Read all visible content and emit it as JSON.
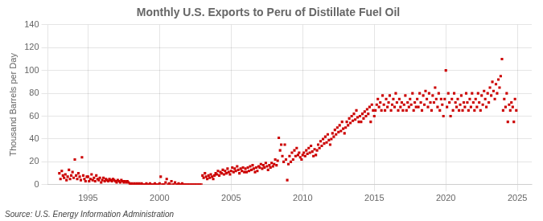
{
  "chart_data": {
    "type": "scatter",
    "title": "Monthly U.S. Exports to Peru of Distillate Fuel Oil",
    "y_label": "Thousand Barrels per Day",
    "source": "Source: U.S. Energy Information Administration",
    "color": "#CC0000",
    "marker": "square",
    "grid": true,
    "xlim": [
      1992.2,
      2026.0
    ],
    "ylim": [
      0,
      140
    ],
    "xticks": [
      1995,
      2000,
      2005,
      2010,
      2015,
      2020,
      2025
    ],
    "yticks": [
      0,
      20,
      40,
      60,
      80,
      100,
      120,
      140
    ],
    "x": [
      1993.0,
      1993.08,
      1993.17,
      1993.25,
      1993.33,
      1993.42,
      1993.5,
      1993.58,
      1993.67,
      1993.75,
      1993.83,
      1993.92,
      1994.0,
      1994.08,
      1994.17,
      1994.25,
      1994.33,
      1994.42,
      1994.5,
      1994.58,
      1994.67,
      1994.75,
      1994.83,
      1994.92,
      1995.0,
      1995.08,
      1995.17,
      1995.25,
      1995.33,
      1995.42,
      1995.5,
      1995.58,
      1995.67,
      1995.75,
      1995.83,
      1995.92,
      1996.0,
      1996.08,
      1996.17,
      1996.25,
      1996.33,
      1996.42,
      1996.5,
      1996.58,
      1996.67,
      1996.75,
      1996.83,
      1996.92,
      1997.0,
      1997.08,
      1997.17,
      1997.25,
      1997.33,
      1997.42,
      1997.5,
      1997.58,
      1997.67,
      1997.75,
      1997.83,
      1997.92,
      1998.0,
      1998.08,
      1998.17,
      1998.25,
      1998.33,
      1998.42,
      1998.5,
      1998.58,
      1998.67,
      1998.75,
      1998.83,
      1998.92,
      1999.0,
      1999.08,
      1999.17,
      1999.25,
      1999.33,
      1999.42,
      1999.5,
      1999.58,
      1999.67,
      1999.75,
      1999.83,
      1999.92,
      2000.0,
      2000.08,
      2000.17,
      2000.25,
      2000.33,
      2000.42,
      2000.5,
      2000.58,
      2000.67,
      2000.75,
      2000.83,
      2000.92,
      2001.0,
      2001.08,
      2001.17,
      2001.25,
      2001.33,
      2001.42,
      2001.5,
      2001.58,
      2001.67,
      2001.75,
      2001.83,
      2001.92,
      2002.0,
      2002.08,
      2002.17,
      2002.25,
      2002.33,
      2002.42,
      2002.5,
      2002.58,
      2002.67,
      2002.75,
      2002.83,
      2002.92,
      2003.0,
      2003.08,
      2003.17,
      2003.25,
      2003.33,
      2003.42,
      2003.5,
      2003.58,
      2003.67,
      2003.75,
      2003.83,
      2003.92,
      2004.0,
      2004.08,
      2004.17,
      2004.25,
      2004.33,
      2004.42,
      2004.5,
      2004.58,
      2004.67,
      2004.75,
      2004.83,
      2004.92,
      2005.0,
      2005.08,
      2005.17,
      2005.25,
      2005.33,
      2005.42,
      2005.5,
      2005.58,
      2005.67,
      2005.75,
      2005.83,
      2005.92,
      2006.0,
      2006.08,
      2006.17,
      2006.25,
      2006.33,
      2006.42,
      2006.5,
      2006.58,
      2006.67,
      2006.75,
      2006.83,
      2006.92,
      2007.0,
      2007.08,
      2007.17,
      2007.25,
      2007.33,
      2007.42,
      2007.5,
      2007.58,
      2007.67,
      2007.75,
      2007.83,
      2007.92,
      2008.0,
      2008.08,
      2008.17,
      2008.25,
      2008.33,
      2008.42,
      2008.5,
      2008.58,
      2008.67,
      2008.75,
      2008.83,
      2008.92,
      2009.0,
      2009.08,
      2009.17,
      2009.25,
      2009.33,
      2009.42,
      2009.5,
      2009.58,
      2009.67,
      2009.75,
      2009.83,
      2009.92,
      2010.0,
      2010.08,
      2010.17,
      2010.25,
      2010.33,
      2010.42,
      2010.5,
      2010.58,
      2010.67,
      2010.75,
      2010.83,
      2010.92,
      2011.0,
      2011.08,
      2011.17,
      2011.25,
      2011.33,
      2011.42,
      2011.5,
      2011.58,
      2011.67,
      2011.75,
      2011.83,
      2011.92,
      2012.0,
      2012.08,
      2012.17,
      2012.25,
      2012.33,
      2012.42,
      2012.5,
      2012.58,
      2012.67,
      2012.75,
      2012.83,
      2012.92,
      2013.0,
      2013.08,
      2013.17,
      2013.25,
      2013.33,
      2013.42,
      2013.5,
      2013.58,
      2013.67,
      2013.75,
      2013.83,
      2013.92,
      2014.0,
      2014.08,
      2014.17,
      2014.25,
      2014.33,
      2014.42,
      2014.5,
      2014.58,
      2014.67,
      2014.75,
      2014.83,
      2014.92,
      2015.0,
      2015.08,
      2015.17,
      2015.25,
      2015.33,
      2015.42,
      2015.5,
      2015.58,
      2015.67,
      2015.75,
      2015.83,
      2015.92,
      2016.0,
      2016.08,
      2016.17,
      2016.25,
      2016.33,
      2016.42,
      2016.5,
      2016.58,
      2016.67,
      2016.75,
      2016.83,
      2016.92,
      2017.0,
      2017.08,
      2017.17,
      2017.25,
      2017.33,
      2017.42,
      2017.5,
      2017.58,
      2017.67,
      2017.75,
      2017.83,
      2017.92,
      2018.0,
      2018.08,
      2018.17,
      2018.25,
      2018.33,
      2018.42,
      2018.5,
      2018.58,
      2018.67,
      2018.75,
      2018.83,
      2018.92,
      2019.0,
      2019.08,
      2019.17,
      2019.25,
      2019.33,
      2019.42,
      2019.5,
      2019.58,
      2019.67,
      2019.75,
      2019.83,
      2019.92,
      2020.0,
      2020.08,
      2020.17,
      2020.25,
      2020.33,
      2020.42,
      2020.5,
      2020.58,
      2020.67,
      2020.75,
      2020.83,
      2020.92,
      2021.0,
      2021.08,
      2021.17,
      2021.25,
      2021.33,
      2021.42,
      2021.5,
      2021.58,
      2021.67,
      2021.75,
      2021.83,
      2021.92,
      2022.0,
      2022.08,
      2022.17,
      2022.25,
      2022.33,
      2022.42,
      2022.5,
      2022.58,
      2022.67,
      2022.75,
      2022.83,
      2022.92,
      2023.0,
      2023.08,
      2023.17,
      2023.25,
      2023.33,
      2023.42,
      2023.5,
      2023.58,
      2023.67,
      2023.75,
      2023.83,
      2023.92,
      2024.0,
      2024.08,
      2024.17,
      2024.25,
      2024.33,
      2024.42,
      2024.5,
      2024.58,
      2024.67,
      2024.75,
      2024.83,
      2024.92
    ],
    "values": [
      10,
      5,
      12,
      8,
      6,
      9,
      4,
      7,
      13,
      5,
      8,
      11,
      6,
      22,
      8,
      5,
      10,
      7,
      4,
      24,
      8,
      5,
      3,
      7,
      7,
      3,
      5,
      9,
      4,
      6,
      3,
      8,
      5,
      4,
      6,
      2,
      4,
      6,
      3,
      5,
      4,
      3,
      5,
      4,
      3,
      5,
      4,
      3,
      2,
      4,
      3,
      2,
      4,
      3,
      2,
      3,
      2,
      3,
      2,
      1,
      0,
      1,
      0,
      1,
      0,
      1,
      0,
      1,
      0,
      1,
      0,
      0,
      0,
      1,
      0,
      0,
      1,
      0,
      0,
      0,
      1,
      0,
      0,
      0,
      1,
      7,
      0,
      0,
      0,
      2,
      5,
      0,
      1,
      0,
      3,
      0,
      0,
      2,
      0,
      0,
      1,
      0,
      0,
      1,
      0,
      0,
      0,
      0,
      0,
      0,
      0,
      0,
      0,
      0,
      0,
      0,
      0,
      0,
      0,
      0,
      8,
      6,
      10,
      7,
      5,
      8,
      6,
      9,
      7,
      5,
      8,
      10,
      9,
      12,
      8,
      11,
      10,
      13,
      9,
      12,
      10,
      14,
      11,
      9,
      12,
      15,
      11,
      14,
      12,
      16,
      13,
      10,
      14,
      12,
      15,
      11,
      14,
      11,
      15,
      12,
      16,
      13,
      17,
      14,
      11,
      15,
      12,
      16,
      15,
      18,
      14,
      17,
      15,
      19,
      16,
      13,
      17,
      15,
      19,
      16,
      18,
      22,
      17,
      21,
      41,
      30,
      35,
      25,
      20,
      35,
      22,
      4,
      18,
      25,
      20,
      28,
      22,
      30,
      25,
      32,
      26,
      28,
      24,
      22,
      26,
      28,
      25,
      30,
      27,
      32,
      28,
      34,
      29,
      25,
      31,
      26,
      30,
      35,
      32,
      38,
      34,
      40,
      36,
      42,
      37,
      44,
      39,
      35,
      40,
      45,
      42,
      48,
      44,
      50,
      46,
      52,
      47,
      55,
      49,
      45,
      50,
      55,
      52,
      58,
      54,
      60,
      56,
      62,
      57,
      65,
      59,
      55,
      60,
      55,
      62,
      58,
      64,
      60,
      66,
      62,
      68,
      55,
      70,
      65,
      60,
      65,
      70,
      75,
      68,
      72,
      65,
      78,
      70,
      65,
      75,
      68,
      72,
      78,
      65,
      70,
      75,
      68,
      80,
      72,
      65,
      75,
      68,
      72,
      65,
      70,
      78,
      65,
      72,
      68,
      75,
      70,
      80,
      65,
      72,
      68,
      75,
      68,
      80,
      72,
      65,
      78,
      70,
      82,
      75,
      68,
      80,
      72,
      65,
      78,
      72,
      85,
      75,
      68,
      80,
      65,
      75,
      70,
      60,
      75,
      100,
      68,
      80,
      72,
      60,
      75,
      65,
      80,
      72,
      68,
      75,
      65,
      70,
      78,
      65,
      72,
      68,
      80,
      72,
      65,
      75,
      68,
      80,
      72,
      65,
      75,
      68,
      80,
      72,
      65,
      78,
      70,
      82,
      75,
      68,
      80,
      72,
      85,
      78,
      90,
      82,
      75,
      88,
      80,
      92,
      85,
      95,
      110,
      65,
      75,
      68,
      80,
      55,
      70,
      65,
      72,
      68,
      55,
      75,
      65
    ]
  }
}
